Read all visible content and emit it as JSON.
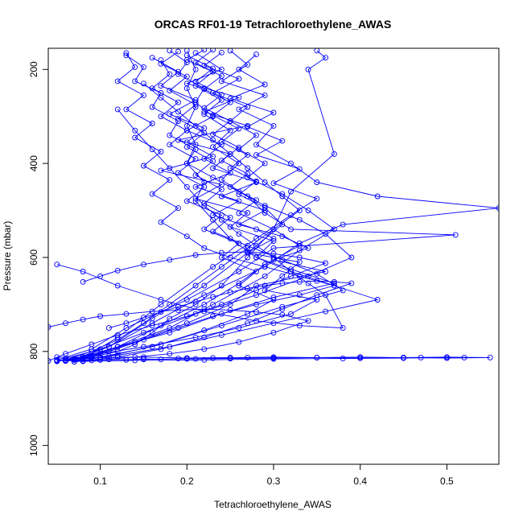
{
  "chart_data": {
    "type": "line",
    "title": "ORCAS RF01-19 Tetrachloroethylene_AWAS",
    "xlabel": "Tetrachloroethylene_AWAS",
    "ylabel": "Pressure (mbar)",
    "xlim": [
      0.04,
      0.56
    ],
    "ylim": [
      1040,
      155
    ],
    "y_reversed": true,
    "x_ticks": [
      0.1,
      0.2,
      0.3,
      0.4,
      0.5
    ],
    "x_tick_labels": [
      "0.1",
      "0.2",
      "0.3",
      "0.4",
      "0.5"
    ],
    "y_ticks": [
      200,
      400,
      600,
      800,
      1000
    ],
    "y_tick_labels": [
      "200",
      "400",
      "600",
      "800",
      "1000"
    ],
    "grid": false,
    "legend": "none",
    "marker": "open-circle",
    "color": "#0000ff",
    "series": [
      {
        "x": [
          0.18,
          0.2,
          0.19,
          0.22,
          0.21,
          0.23,
          0.2,
          0.24,
          0.22,
          0.25,
          0.21,
          0.26,
          0.23,
          0.28,
          0.3,
          0.27,
          0.33,
          0.31,
          0.29,
          0.35,
          0.32,
          0.26,
          0.21,
          0.15,
          0.1,
          0.07,
          0.05
        ],
        "y": [
          160,
          185,
          210,
          240,
          270,
          300,
          330,
          360,
          390,
          420,
          450,
          480,
          510,
          540,
          560,
          590,
          610,
          640,
          670,
          690,
          720,
          750,
          770,
          790,
          805,
          815,
          820
        ]
      },
      {
        "x": [
          0.21,
          0.24,
          0.2,
          0.26,
          0.22,
          0.27,
          0.19,
          0.25,
          0.23,
          0.28,
          0.24,
          0.29,
          0.26,
          0.31,
          0.34,
          0.3,
          0.36,
          0.28,
          0.25,
          0.2,
          0.14,
          0.09,
          0.06
        ],
        "y": [
          165,
          200,
          230,
          260,
          290,
          320,
          350,
          380,
          410,
          440,
          470,
          500,
          530,
          555,
          580,
          605,
          630,
          660,
          700,
          740,
          780,
          810,
          820
        ]
      },
      {
        "x": [
          0.16,
          0.19,
          0.17,
          0.21,
          0.18,
          0.22,
          0.2,
          0.23,
          0.17,
          0.24,
          0.21,
          0.27,
          0.25,
          0.3,
          0.28,
          0.32,
          0.37,
          0.3,
          0.24,
          0.18,
          0.12,
          0.08,
          0.05
        ],
        "y": [
          175,
          205,
          235,
          265,
          295,
          325,
          355,
          385,
          415,
          445,
          475,
          505,
          535,
          565,
          600,
          625,
          655,
          685,
          720,
          760,
          790,
          812,
          821
        ]
      },
      {
        "x": [
          0.25,
          0.27,
          0.24,
          0.29,
          0.26,
          0.3,
          0.28,
          0.32,
          0.35,
          0.42,
          0.56,
          0.38,
          0.33,
          0.29,
          0.22,
          0.16,
          0.11,
          0.07
        ],
        "y": [
          160,
          190,
          225,
          255,
          285,
          320,
          360,
          400,
          440,
          470,
          495,
          530,
          570,
          620,
          680,
          740,
          790,
          818
        ]
      },
      {
        "x": [
          0.13,
          0.15,
          0.14,
          0.17,
          0.16,
          0.19,
          0.18,
          0.21,
          0.2,
          0.23,
          0.26,
          0.29,
          0.33,
          0.36,
          0.39,
          0.34,
          0.28,
          0.21,
          0.15,
          0.1,
          0.06
        ],
        "y": [
          170,
          195,
          225,
          250,
          280,
          310,
          340,
          370,
          400,
          430,
          460,
          490,
          520,
          550,
          600,
          640,
          680,
          720,
          760,
          795,
          815
        ]
      },
      {
        "x": [
          0.22,
          0.2,
          0.23,
          0.21,
          0.24,
          0.22,
          0.25,
          0.23,
          0.26,
          0.24,
          0.27,
          0.29,
          0.32,
          0.51,
          0.3,
          0.26,
          0.2,
          0.13,
          0.09,
          0.05
        ],
        "y": [
          158,
          180,
          205,
          235,
          265,
          295,
          330,
          365,
          400,
          435,
          470,
          505,
          540,
          552,
          580,
          630,
          690,
          750,
          795,
          818
        ]
      },
      {
        "x": [
          0.19,
          0.17,
          0.2,
          0.18,
          0.21,
          0.19,
          0.22,
          0.2,
          0.23,
          0.21,
          0.24,
          0.22,
          0.25,
          0.23,
          0.27,
          0.31,
          0.35,
          0.38,
          0.31,
          0.24,
          0.17,
          0.11,
          0.07
        ],
        "y": [
          162,
          188,
          215,
          245,
          275,
          305,
          335,
          365,
          395,
          425,
          455,
          485,
          515,
          545,
          575,
          605,
          635,
          670,
          705,
          745,
          785,
          810,
          822
        ]
      },
      {
        "x": [
          0.28,
          0.26,
          0.29,
          0.25,
          0.3,
          0.27,
          0.31,
          0.28,
          0.33,
          0.3,
          0.35,
          0.32,
          0.28,
          0.23,
          0.17,
          0.12,
          0.08
        ],
        "y": [
          168,
          200,
          232,
          262,
          292,
          322,
          352,
          382,
          412,
          442,
          475,
          510,
          560,
          620,
          700,
          770,
          815
        ]
      },
      {
        "x": [
          0.17,
          0.18,
          0.16,
          0.19,
          0.17,
          0.2,
          0.18,
          0.21,
          0.19,
          0.22,
          0.2,
          0.24,
          0.22,
          0.26,
          0.24,
          0.28,
          0.26,
          0.3,
          0.27,
          0.22,
          0.16,
          0.1,
          0.06
        ],
        "y": [
          180,
          210,
          240,
          270,
          300,
          330,
          360,
          390,
          420,
          450,
          480,
          510,
          540,
          570,
          600,
          630,
          660,
          690,
          720,
          755,
          790,
          812,
          820
        ]
      },
      {
        "x": [
          0.24,
          0.22,
          0.26,
          0.23,
          0.27,
          0.25,
          0.28,
          0.26,
          0.29,
          0.27,
          0.31,
          0.34,
          0.37,
          0.33,
          0.29,
          0.23,
          0.18,
          0.12,
          0.08,
          0.05
        ],
        "y": [
          164,
          192,
          220,
          250,
          280,
          310,
          340,
          370,
          400,
          430,
          465,
          500,
          540,
          585,
          640,
          700,
          750,
          790,
          812,
          819
        ]
      },
      {
        "x": [
          0.2,
          0.23,
          0.21,
          0.24,
          0.22,
          0.25,
          0.23,
          0.26,
          0.24,
          0.27,
          0.25,
          0.28,
          0.26,
          0.3,
          0.33,
          0.29,
          0.26,
          0.22,
          0.17,
          0.12,
          0.08
        ],
        "y": [
          170,
          198,
          226,
          254,
          282,
          310,
          338,
          366,
          394,
          422,
          450,
          478,
          506,
          540,
          575,
          615,
          655,
          700,
          745,
          790,
          815
        ]
      },
      {
        "x": [
          0.05,
          0.1,
          0.15,
          0.2,
          0.25,
          0.3,
          0.35,
          0.4,
          0.45,
          0.5,
          0.55,
          0.5,
          0.45,
          0.4,
          0.35,
          0.3,
          0.25,
          0.2,
          0.15,
          0.1,
          0.06
        ],
        "y": [
          812,
          813,
          812,
          814,
          813,
          812,
          813,
          814,
          813,
          812,
          813,
          814,
          813,
          812,
          813,
          814,
          815,
          816,
          817,
          818,
          820
        ]
      },
      {
        "x": [
          0.05,
          0.07,
          0.09,
          0.11,
          0.13,
          0.15,
          0.17,
          0.19,
          0.21,
          0.23,
          0.25,
          0.27,
          0.3,
          0.35,
          0.4,
          0.47,
          0.52,
          0.45,
          0.38,
          0.3,
          0.22,
          0.14,
          0.08
        ],
        "y": [
          820,
          818,
          819,
          817,
          818,
          816,
          817,
          815,
          816,
          814,
          815,
          813,
          814,
          813,
          814,
          813,
          813,
          814,
          815,
          816,
          818,
          819,
          821
        ]
      },
      {
        "x": [
          0.13,
          0.14,
          0.12,
          0.15,
          0.13,
          0.16,
          0.14,
          0.17,
          0.15,
          0.18,
          0.16,
          0.19,
          0.17,
          0.2,
          0.22,
          0.25,
          0.29,
          0.33,
          0.37,
          0.42,
          0.36,
          0.3,
          0.24,
          0.18,
          0.12,
          0.07
        ],
        "y": [
          165,
          195,
          225,
          255,
          285,
          315,
          345,
          375,
          405,
          435,
          465,
          495,
          525,
          555,
          580,
          600,
          620,
          640,
          660,
          690,
          715,
          740,
          765,
          790,
          808,
          818
        ]
      },
      {
        "x": [
          0.35,
          0.36,
          0.34,
          0.37,
          0.32,
          0.3,
          0.27,
          0.24,
          0.21,
          0.18,
          0.16,
          0.14,
          0.12,
          0.09,
          0.06
        ],
        "y": [
          160,
          175,
          200,
          380,
          460,
          540,
          600,
          660,
          700,
          730,
          760,
          785,
          800,
          812,
          818
        ]
      },
      {
        "x": [
          0.23,
          0.21,
          0.24,
          0.22,
          0.25,
          0.23,
          0.26,
          0.24,
          0.27,
          0.25,
          0.28,
          0.26,
          0.29,
          0.31,
          0.27,
          0.22,
          0.16,
          0.11,
          0.07
        ],
        "y": [
          158,
          186,
          214,
          242,
          270,
          298,
          326,
          354,
          382,
          410,
          438,
          466,
          494,
          530,
          590,
          660,
          730,
          790,
          816
        ]
      },
      {
        "x": [
          0.12,
          0.14,
          0.16,
          0.18,
          0.2,
          0.22,
          0.24,
          0.26,
          0.28,
          0.3,
          0.32,
          0.34,
          0.36,
          0.38,
          0.33,
          0.28,
          0.22,
          0.17,
          0.12,
          0.08,
          0.05
        ],
        "y": [
          285,
          330,
          370,
          410,
          450,
          490,
          520,
          550,
          575,
          600,
          630,
          655,
          680,
          750,
          745,
          735,
          715,
          690,
          660,
          630,
          615
        ]
      },
      {
        "x": [
          0.08,
          0.1,
          0.12,
          0.15,
          0.18,
          0.21,
          0.24,
          0.27,
          0.3,
          0.33,
          0.36,
          0.32,
          0.28,
          0.24,
          0.2,
          0.16,
          0.12,
          0.09,
          0.06,
          0.04
        ],
        "y": [
          652,
          640,
          628,
          615,
          605,
          595,
          590,
          588,
          592,
          600,
          612,
          640,
          670,
          700,
          725,
          745,
          765,
          785,
          805,
          820
        ]
      },
      {
        "x": [
          0.04,
          0.06,
          0.08,
          0.1,
          0.13,
          0.16,
          0.19,
          0.22,
          0.25,
          0.28,
          0.31,
          0.34,
          0.3,
          0.26,
          0.22,
          0.18,
          0.14,
          0.1,
          0.07
        ],
        "y": [
          748,
          740,
          732,
          725,
          720,
          715,
          712,
          710,
          712,
          716,
          722,
          735,
          760,
          780,
          795,
          805,
          812,
          818,
          822
        ]
      },
      {
        "x": [
          0.15,
          0.17,
          0.19,
          0.21,
          0.23,
          0.25,
          0.27,
          0.29,
          0.31,
          0.33,
          0.3,
          0.27,
          0.24,
          0.21,
          0.18,
          0.15,
          0.12,
          0.09,
          0.06
        ],
        "y": [
          230,
          260,
          290,
          320,
          350,
          380,
          410,
          440,
          470,
          500,
          540,
          580,
          620,
          660,
          700,
          740,
          775,
          800,
          818
        ]
      },
      {
        "x": [
          0.2,
          0.21,
          0.2,
          0.21,
          0.2,
          0.21,
          0.2,
          0.22,
          0.21,
          0.23,
          0.25,
          0.28,
          0.32,
          0.37,
          0.33,
          0.28,
          0.23,
          0.19,
          0.15,
          0.11,
          0.08
        ],
        "y": [
          160,
          200,
          240,
          280,
          320,
          360,
          400,
          440,
          480,
          520,
          560,
          600,
          630,
          660,
          680,
          700,
          725,
          750,
          775,
          800,
          817
        ]
      },
      {
        "x": [
          0.11,
          0.13,
          0.15,
          0.17,
          0.19,
          0.21,
          0.23,
          0.25,
          0.27,
          0.29,
          0.31,
          0.33,
          0.35,
          0.37,
          0.39,
          0.35,
          0.31,
          0.27,
          0.22,
          0.17,
          0.12,
          0.08
        ],
        "y": [
          750,
          740,
          728,
          716,
          705,
          694,
          684,
          674,
          666,
          660,
          655,
          652,
          650,
          652,
          655,
          680,
          710,
          740,
          770,
          795,
          812,
          820
        ]
      }
    ]
  }
}
